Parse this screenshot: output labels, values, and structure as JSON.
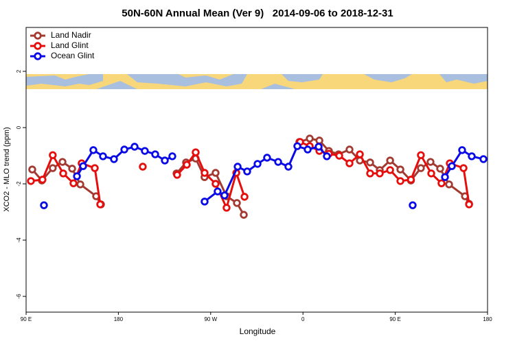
{
  "chart_data": {
    "type": "line",
    "title": "50N-60N Annual Mean (Ver 9)   2014-09-06 to 2018-12-31",
    "x_label": "Longitude",
    "y_label": "XCO2 - MLO trend (ppm)",
    "xlim": [
      90,
      540
    ],
    "xticks": [
      {
        "value": 90,
        "label": "90 E"
      },
      {
        "value": 180,
        "label": "180"
      },
      {
        "value": 270,
        "label": "90 W"
      },
      {
        "value": 360,
        "label": "0"
      },
      {
        "value": 450,
        "label": "90 E"
      },
      {
        "value": 540,
        "label": "180"
      }
    ],
    "ylim": [
      -6.56,
      3.56
    ],
    "yticks": [
      -6,
      -4,
      -2,
      0,
      2
    ],
    "legend": "top-left",
    "series": [
      {
        "name": "Land Nadir",
        "color": "#a33a32",
        "x": [
          96,
          105.4,
          116,
          125.5,
          134.9,
          142.9,
          158.3,
          163,
          null,
          236.7,
          246,
          255.4,
          264,
          274.8,
          285.5,
          295.6,
          302.3,
          null,
          356.5,
          366.6,
          376,
          385.3,
          394.7,
          405.4,
          415.5,
          425.5,
          434.9,
          445,
          455,
          465.3,
          475,
          484.4,
          493.8,
          502.5,
          518,
          522
        ],
        "values": [
          -1.49,
          -1.88,
          -1.44,
          -1.22,
          -1.46,
          -2.02,
          -2.44,
          -2.73,
          null,
          -1.63,
          -1.24,
          -1.1,
          -1.76,
          -1.61,
          -2.44,
          -2.68,
          -3.1,
          null,
          -0.51,
          -0.39,
          -0.46,
          -0.83,
          -0.95,
          -0.78,
          -1.17,
          -1.24,
          -1.51,
          -1.17,
          -1.49,
          -1.88,
          -1.44,
          -1.22,
          -1.46,
          -2.02,
          -2.44,
          -2.71
        ]
      },
      {
        "name": "Land Glint",
        "color": "#e60d0d",
        "x": [
          94.7,
          106,
          116,
          126.2,
          136.2,
          144.2,
          157,
          162.3,
          null,
          203.8,
          null,
          237.3,
          246.7,
          255.4,
          264.1,
          274.8,
          285.5,
          295,
          303,
          null,
          357.2,
          366.6,
          376,
          385.3,
          395.4,
          405.4,
          415.5,
          425.5,
          434.9,
          445,
          455,
          465.3,
          475,
          485.1,
          495.1,
          503.2,
          516.6,
          522
        ],
        "values": [
          -1.9,
          -1.85,
          -0.98,
          -1.63,
          -1.98,
          -1.27,
          -1.44,
          -2.73,
          null,
          -1.39,
          null,
          -1.68,
          -1.32,
          -0.88,
          -1.61,
          -2.0,
          -2.85,
          -1.61,
          -2.46,
          null,
          -0.51,
          -0.66,
          -0.83,
          -0.93,
          -1.0,
          -1.27,
          -0.95,
          -1.63,
          -1.63,
          -1.51,
          -1.9,
          -1.85,
          -0.98,
          -1.63,
          -1.98,
          -1.27,
          -1.44,
          -2.73
        ]
      },
      {
        "name": "Ocean Glint",
        "color": "#0a0ae6",
        "x": [
          107.4,
          null,
          139.6,
          145.6,
          155.6,
          165,
          175.7,
          185.8,
          195.8,
          205.8,
          215.9,
          225.3,
          232.6,
          null,
          264.1,
          276.8,
          283.5,
          296.3,
          305.6,
          315.7,
          325,
          335.8,
          345.8,
          354.5,
          364.6,
          375.3,
          383.3,
          null,
          467,
          null,
          498.5,
          505.2,
          515.2,
          524.6,
          536
        ],
        "values": [
          -2.76,
          null,
          -1.73,
          -1.37,
          -0.8,
          -1.02,
          -1.12,
          -0.78,
          -0.68,
          -0.83,
          -0.95,
          -1.17,
          -1.02,
          null,
          -2.63,
          -2.27,
          -2.41,
          -1.39,
          -1.56,
          -1.29,
          -1.07,
          -1.22,
          -1.39,
          -0.66,
          -0.78,
          -0.68,
          -1.02,
          null,
          -2.76,
          null,
          -1.76,
          -1.37,
          -0.8,
          -1.02,
          -1.12
        ]
      }
    ]
  }
}
